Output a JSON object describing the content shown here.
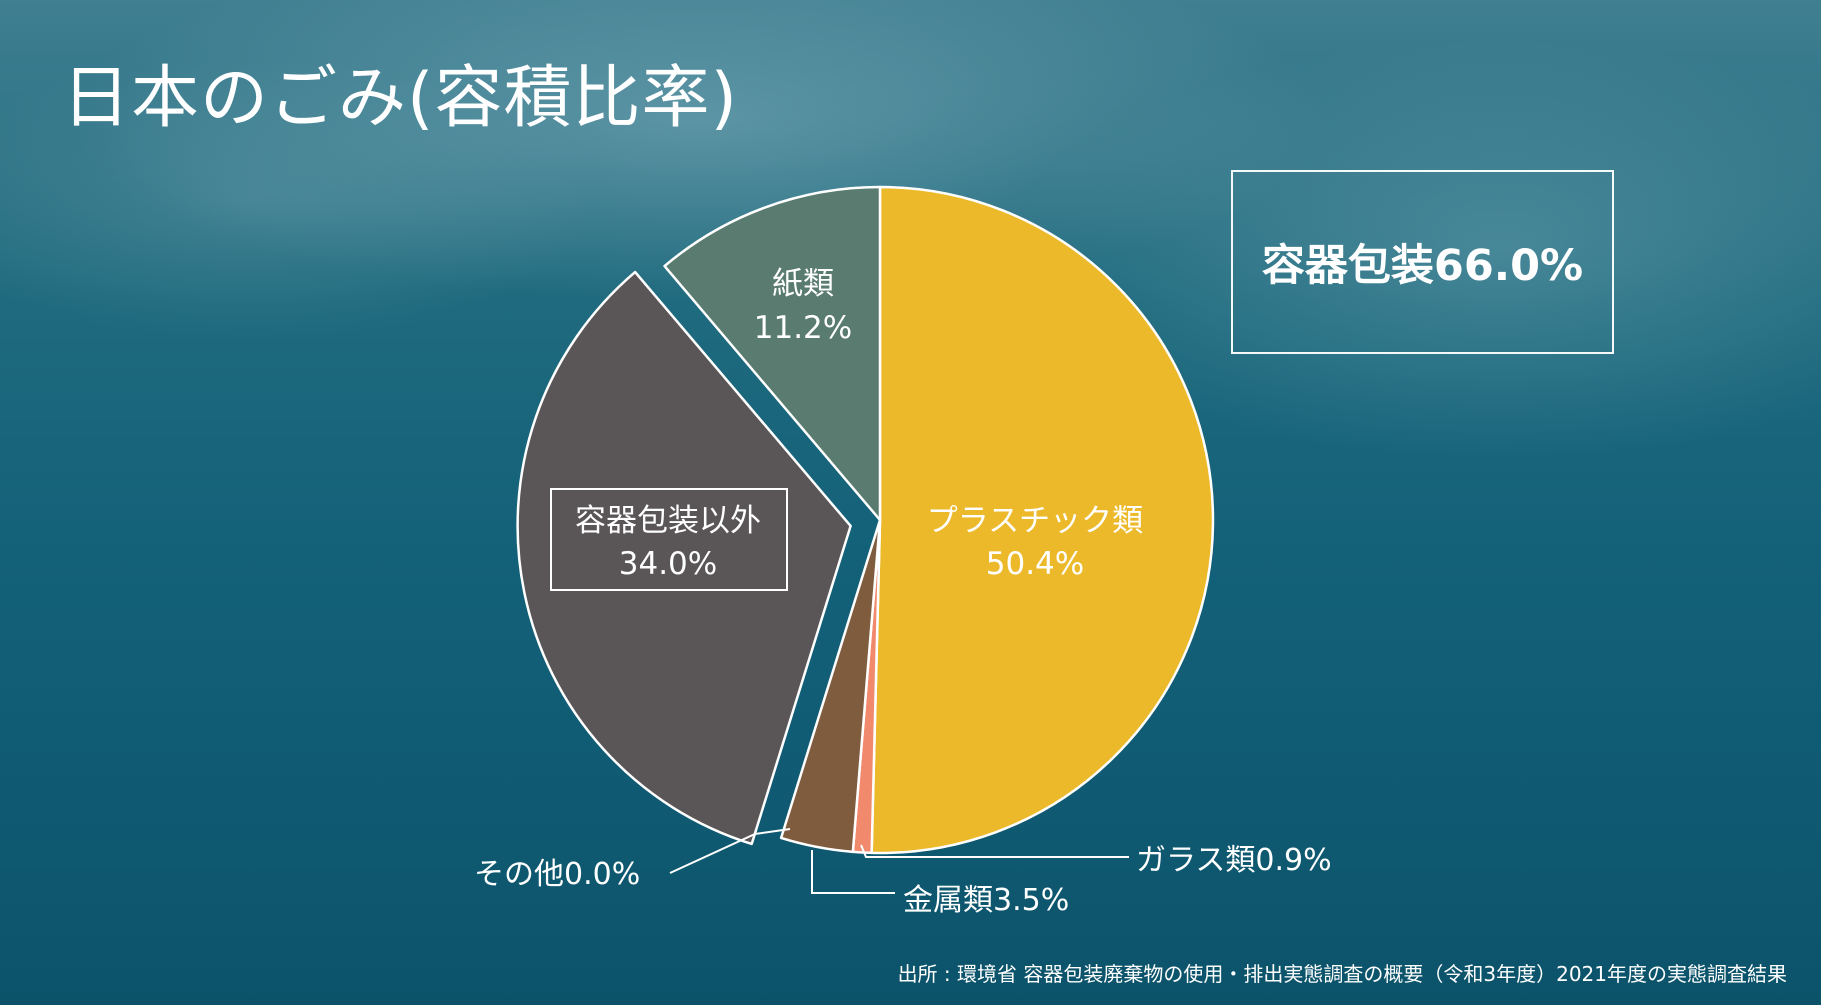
{
  "title": "日本のごみ(容積比率)",
  "summary_label": "容器包装66.0%",
  "source": "出所 : 環境省 容器包装廃棄物の使用・排出実態調査の概要（令和3年度）2021年度の実態調査結果",
  "chart_data": {
    "type": "pie",
    "title": "日本のごみ(容積比率)",
    "slices": [
      {
        "name": "プラスチック類",
        "value": 50.4,
        "label_line1": "プラスチック類",
        "label_line2": "50.4%",
        "color": "#ecb92b"
      },
      {
        "name": "ガラス類",
        "value": 0.9,
        "label_line1": "ガラス類0.9%",
        "label_line2": "",
        "color": "#f18a6c"
      },
      {
        "name": "金属類",
        "value": 3.5,
        "label_line1": "金属類3.5%",
        "label_line2": "",
        "color": "#7f5c3d"
      },
      {
        "name": "その他",
        "value": 0.0,
        "label_line1": "その他0.0%",
        "label_line2": "",
        "color": "#9aa8a8"
      },
      {
        "name": "容器包装以外",
        "value": 34.0,
        "label_line1": "容器包装以外",
        "label_line2": "34.0%",
        "color": "#5a5657"
      },
      {
        "name": "紙類",
        "value": 11.2,
        "label_line1": "紙類",
        "label_line2": "11.2%",
        "color": "#5a7b6f"
      }
    ],
    "exploded": [
      "容器包装以外"
    ],
    "group_label": "容器包装66.0%"
  }
}
